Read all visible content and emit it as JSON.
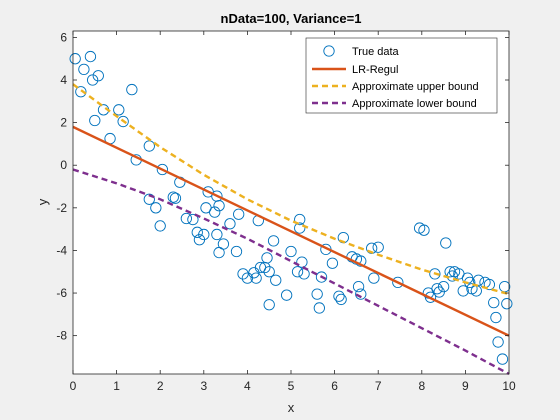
{
  "chart_data": {
    "type": "scatter",
    "title": "nData=100, Variance=1",
    "xlabel": "x",
    "ylabel": "y",
    "xlim": [
      0,
      10
    ],
    "ylim": [
      -9.8,
      6.3
    ],
    "xticks": [
      "0",
      "1",
      "2",
      "3",
      "4",
      "5",
      "6",
      "7",
      "8",
      "9",
      "10"
    ],
    "yticks": [
      "6",
      "4",
      "2",
      "0",
      "-2",
      "-4",
      "-6",
      "-8"
    ],
    "grid": false,
    "legend_position": "top-right",
    "series": [
      {
        "name": "True data",
        "kind": "scatter",
        "color": "#0072BD",
        "points": [
          [
            0.05,
            5.0
          ],
          [
            0.18,
            3.45
          ],
          [
            0.25,
            4.5
          ],
          [
            0.4,
            5.1
          ],
          [
            0.45,
            4.0
          ],
          [
            0.5,
            2.1
          ],
          [
            0.58,
            4.2
          ],
          [
            0.7,
            2.6
          ],
          [
            0.85,
            1.25
          ],
          [
            1.05,
            2.6
          ],
          [
            1.15,
            2.05
          ],
          [
            1.35,
            3.55
          ],
          [
            1.45,
            0.25
          ],
          [
            1.75,
            0.9
          ],
          [
            1.75,
            -1.6
          ],
          [
            1.9,
            -2.0
          ],
          [
            2.0,
            -2.85
          ],
          [
            2.05,
            -0.2
          ],
          [
            2.3,
            -1.5
          ],
          [
            2.35,
            -1.55
          ],
          [
            2.45,
            -0.8
          ],
          [
            2.6,
            -2.5
          ],
          [
            2.75,
            -2.55
          ],
          [
            2.85,
            -3.15
          ],
          [
            3.0,
            -3.25
          ],
          [
            3.05,
            -2.0
          ],
          [
            3.1,
            -1.25
          ],
          [
            3.25,
            -2.2
          ],
          [
            3.3,
            -1.45
          ],
          [
            3.35,
            -1.9
          ],
          [
            3.3,
            -3.25
          ],
          [
            3.35,
            -4.1
          ],
          [
            3.6,
            -2.75
          ],
          [
            3.75,
            -4.05
          ],
          [
            3.8,
            -2.3
          ],
          [
            3.9,
            -5.1
          ],
          [
            4.0,
            -5.3
          ],
          [
            4.15,
            -5.05
          ],
          [
            4.2,
            -5.3
          ],
          [
            4.25,
            -2.6
          ],
          [
            4.3,
            -4.8
          ],
          [
            4.4,
            -4.8
          ],
          [
            4.45,
            -4.35
          ],
          [
            4.5,
            -5.0
          ],
          [
            4.5,
            -6.55
          ],
          [
            4.6,
            -3.55
          ],
          [
            4.65,
            -5.4
          ],
          [
            4.9,
            -6.1
          ],
          [
            5.0,
            -4.05
          ],
          [
            5.15,
            -5.0
          ],
          [
            5.2,
            -2.95
          ],
          [
            5.2,
            -2.55
          ],
          [
            5.25,
            -4.55
          ],
          [
            5.3,
            -5.1
          ],
          [
            5.6,
            -6.05
          ],
          [
            5.65,
            -6.7
          ],
          [
            5.7,
            -5.25
          ],
          [
            5.8,
            -3.95
          ],
          [
            6.1,
            -6.15
          ],
          [
            6.15,
            -6.3
          ],
          [
            6.2,
            -3.4
          ],
          [
            6.4,
            -4.3
          ],
          [
            6.5,
            -4.4
          ],
          [
            6.55,
            -5.7
          ],
          [
            6.6,
            -4.5
          ],
          [
            6.6,
            -6.05
          ],
          [
            6.85,
            -3.9
          ],
          [
            6.9,
            -5.3
          ],
          [
            7.45,
            -5.5
          ],
          [
            7.95,
            -2.95
          ],
          [
            8.05,
            -3.05
          ],
          [
            8.15,
            -6.0
          ],
          [
            8.2,
            -6.2
          ],
          [
            8.3,
            -5.1
          ],
          [
            8.35,
            -5.8
          ],
          [
            8.5,
            -5.7
          ],
          [
            8.55,
            -3.65
          ],
          [
            8.65,
            -5.0
          ],
          [
            8.75,
            -5.0
          ],
          [
            8.85,
            -5.1
          ],
          [
            8.95,
            -5.9
          ],
          [
            9.05,
            -5.3
          ],
          [
            9.15,
            -5.8
          ],
          [
            9.25,
            -5.9
          ],
          [
            9.3,
            -5.4
          ],
          [
            9.45,
            -5.5
          ],
          [
            9.55,
            -5.6
          ],
          [
            9.65,
            -6.45
          ],
          [
            9.7,
            -7.15
          ],
          [
            9.75,
            -8.3
          ],
          [
            9.85,
            -9.1
          ],
          [
            9.9,
            -5.7
          ],
          [
            9.95,
            -6.5
          ],
          [
            8.4,
            -5.95
          ],
          [
            7.0,
            -3.85
          ],
          [
            8.7,
            -5.2
          ],
          [
            9.1,
            -5.5
          ],
          [
            5.95,
            -4.6
          ],
          [
            2.9,
            -3.5
          ],
          [
            3.45,
            -3.7
          ]
        ]
      },
      {
        "name": "LR-Regul",
        "kind": "line",
        "color": "#D95319",
        "x": [
          0,
          10
        ],
        "y": [
          1.8,
          -8.0
        ]
      },
      {
        "name": "Approximate upper bound",
        "kind": "dashed-line",
        "color": "#EDB120",
        "x": [
          0,
          1,
          2,
          3,
          4,
          5,
          6,
          7,
          8,
          9,
          10
        ],
        "y": [
          3.8,
          2.3,
          0.85,
          -0.45,
          -1.6,
          -2.6,
          -3.45,
          -4.2,
          -4.9,
          -5.5,
          -6.05
        ]
      },
      {
        "name": "Approximate lower bound",
        "kind": "dashed-line",
        "color": "#7E2F8E",
        "x": [
          0,
          1,
          2,
          3,
          4,
          5,
          6,
          7,
          8,
          9,
          10
        ],
        "y": [
          -0.2,
          -0.85,
          -1.6,
          -2.5,
          -3.45,
          -4.5,
          -5.55,
          -6.6,
          -7.65,
          -8.7,
          -9.8
        ]
      }
    ]
  }
}
